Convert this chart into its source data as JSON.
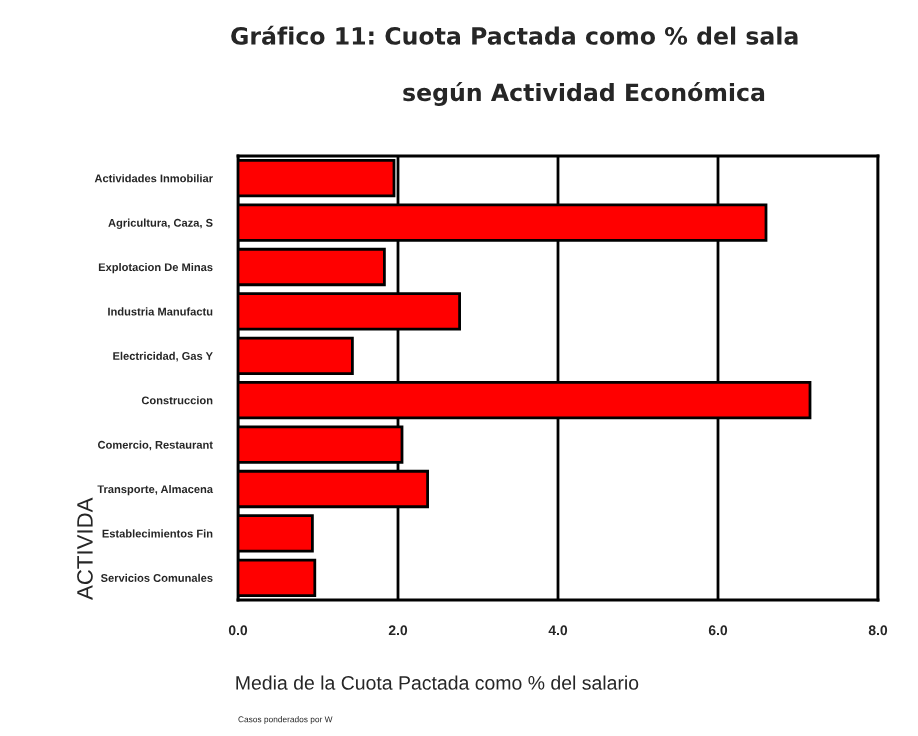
{
  "chart_data": {
    "type": "bar",
    "orientation": "horizontal",
    "title": "Gráfico 11: Cuota Pactada como % del sala",
    "subtitle": "según Actividad Económica",
    "xlabel": "Media de la Cuota Pactada como % del salario",
    "ylabel": "ACTIVIDA",
    "categories": [
      "Actividades Inmobiliar",
      "Agricultura, Caza, S",
      "Explotacion De Minas",
      "Industria Manufactu",
      "Electricidad, Gas Y",
      "Construccion",
      "Comercio, Restaurant",
      "Transporte, Almacena",
      "Establecimientos Fin",
      "Servicios Comunales"
    ],
    "values": [
      1.95,
      6.6,
      1.83,
      2.77,
      1.43,
      7.15,
      2.05,
      2.37,
      0.93,
      0.96
    ],
    "color": "#ff0000",
    "xlim": [
      0,
      8
    ],
    "xticks": [
      {
        "value": 0,
        "label": "0.0"
      },
      {
        "value": 2,
        "label": "2.0"
      },
      {
        "value": 4,
        "label": "4.0"
      },
      {
        "value": 6,
        "label": "6.0"
      },
      {
        "value": 8,
        "label": "8.0"
      }
    ],
    "grid": "x",
    "annotations": [
      "Casos ponderados por W"
    ]
  }
}
